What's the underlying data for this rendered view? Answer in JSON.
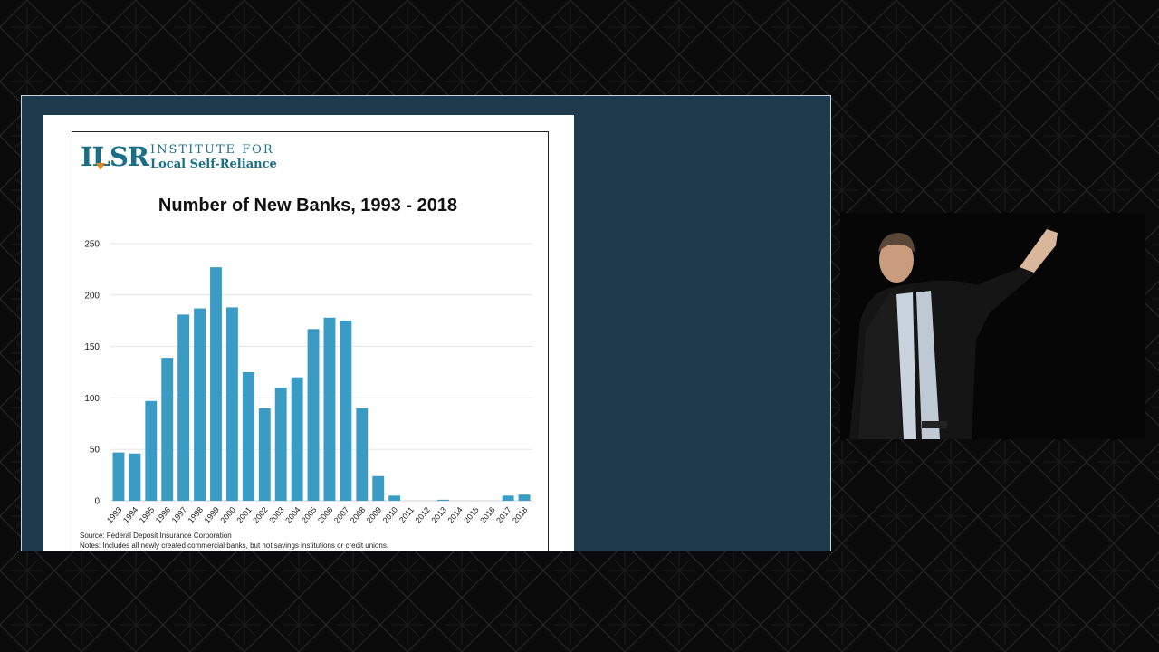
{
  "logo": {
    "mark": "ILSR",
    "line1": "INSTITUTE FOR",
    "line2": "Local Self-Reliance"
  },
  "footer": {
    "source": "Source: Federal Deposit Insurance Corporation",
    "notes": "Notes: Includes all newly created commercial banks, but not savings institutions or credit unions."
  },
  "colors": {
    "bar": "#3a9bc4",
    "slide_bg": "#1e3a4c",
    "brand": "#1a6f86"
  },
  "chart_data": {
    "type": "bar",
    "title": "Number of New Banks, 1993 - 2018",
    "xlabel": "",
    "ylabel": "",
    "ylim": [
      0,
      250
    ],
    "yticks": [
      0,
      50,
      100,
      150,
      200,
      250
    ],
    "grid": true,
    "categories": [
      "1993",
      "1994",
      "1995",
      "1996",
      "1997",
      "1998",
      "1999",
      "2000",
      "2001",
      "2002",
      "2003",
      "2004",
      "2005",
      "2006",
      "2007",
      "2008",
      "2009",
      "2010",
      "2011",
      "2012",
      "2013",
      "2014",
      "2015",
      "2016",
      "2017",
      "2018"
    ],
    "values": [
      47,
      46,
      97,
      139,
      181,
      187,
      227,
      188,
      125,
      90,
      110,
      120,
      167,
      178,
      175,
      90,
      24,
      5,
      0,
      0,
      1,
      0,
      0,
      0,
      5,
      6
    ]
  }
}
